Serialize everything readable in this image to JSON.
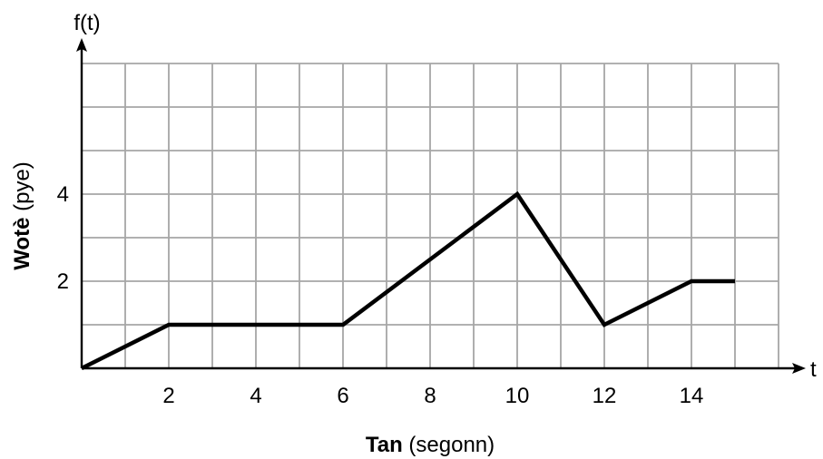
{
  "chart_data": {
    "type": "line",
    "x_axis_symbol": "t",
    "y_axis_symbol": "f(t)",
    "xlabel_bold": "Tan",
    "xlabel_rest": " (segonn)",
    "ylabel_bold": "Wotè",
    "ylabel_rest": " (pye)",
    "xlim": [
      0,
      16
    ],
    "ylim": [
      0,
      7
    ],
    "x_grid_step": 1,
    "y_grid_step": 1,
    "grid": true,
    "x_ticks": [
      2,
      4,
      6,
      8,
      10,
      12,
      14
    ],
    "y_ticks": [
      2,
      4
    ],
    "series": [
      {
        "x": [
          0,
          2,
          6,
          10,
          12,
          14,
          15
        ],
        "y": [
          0,
          1,
          1,
          4,
          1,
          2,
          2
        ]
      }
    ]
  }
}
